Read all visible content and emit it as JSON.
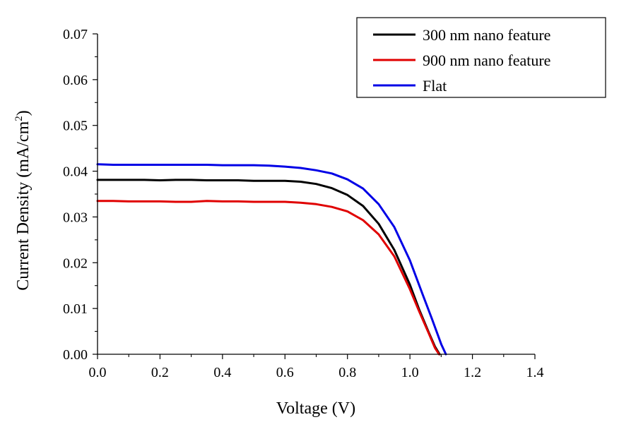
{
  "chart_data": {
    "type": "line",
    "xlabel": "Voltage (V)",
    "ylabel": "Current Density (mA/cm",
    "ylabel_sup": "2",
    "ylabel_close": ")",
    "xlim": [
      0.0,
      1.4
    ],
    "ylim": [
      0.0,
      0.07
    ],
    "xticks": [
      "0.0",
      "0.2",
      "0.4",
      "0.6",
      "0.8",
      "1.0",
      "1.2",
      "1.4"
    ],
    "yticks": [
      "0.00",
      "0.01",
      "0.02",
      "0.03",
      "0.04",
      "0.05",
      "0.06",
      "0.07"
    ],
    "legend_position": "top-right",
    "series": [
      {
        "name": "300 nm nano feature",
        "color": "#000000",
        "x": [
          0.0,
          0.05,
          0.1,
          0.15,
          0.2,
          0.25,
          0.3,
          0.35,
          0.4,
          0.45,
          0.5,
          0.55,
          0.6,
          0.65,
          0.7,
          0.75,
          0.8,
          0.85,
          0.9,
          0.95,
          1.0,
          1.03,
          1.06,
          1.08,
          1.095
        ],
        "y": [
          0.0381,
          0.0381,
          0.0381,
          0.0381,
          0.038,
          0.0381,
          0.0381,
          0.038,
          0.038,
          0.038,
          0.0379,
          0.0379,
          0.0379,
          0.0377,
          0.0372,
          0.0363,
          0.0348,
          0.0324,
          0.0285,
          0.0228,
          0.0152,
          0.0097,
          0.0048,
          0.0017,
          0.0
        ]
      },
      {
        "name": "900 nm nano feature",
        "color": "#e00000",
        "x": [
          0.0,
          0.05,
          0.1,
          0.15,
          0.2,
          0.25,
          0.3,
          0.35,
          0.4,
          0.45,
          0.5,
          0.55,
          0.6,
          0.65,
          0.7,
          0.75,
          0.8,
          0.85,
          0.9,
          0.95,
          1.0,
          1.03,
          1.06,
          1.08,
          1.093
        ],
        "y": [
          0.0335,
          0.0335,
          0.0334,
          0.0334,
          0.0334,
          0.0333,
          0.0333,
          0.0335,
          0.0334,
          0.0334,
          0.0333,
          0.0333,
          0.0333,
          0.0331,
          0.0328,
          0.0322,
          0.0312,
          0.0293,
          0.0262,
          0.0214,
          0.0142,
          0.0093,
          0.0046,
          0.0014,
          0.0
        ]
      },
      {
        "name": "Flat",
        "color": "#0000e6",
        "x": [
          0.0,
          0.05,
          0.1,
          0.15,
          0.2,
          0.25,
          0.3,
          0.35,
          0.4,
          0.45,
          0.5,
          0.55,
          0.6,
          0.65,
          0.7,
          0.75,
          0.8,
          0.85,
          0.9,
          0.95,
          1.0,
          1.04,
          1.07,
          1.1,
          1.115
        ],
        "y": [
          0.0415,
          0.0414,
          0.0414,
          0.0414,
          0.0414,
          0.0414,
          0.0414,
          0.0414,
          0.0413,
          0.0413,
          0.0413,
          0.0412,
          0.041,
          0.0407,
          0.0402,
          0.0395,
          0.0382,
          0.0362,
          0.0328,
          0.0278,
          0.0205,
          0.0132,
          0.0078,
          0.0022,
          0.0
        ]
      }
    ]
  }
}
